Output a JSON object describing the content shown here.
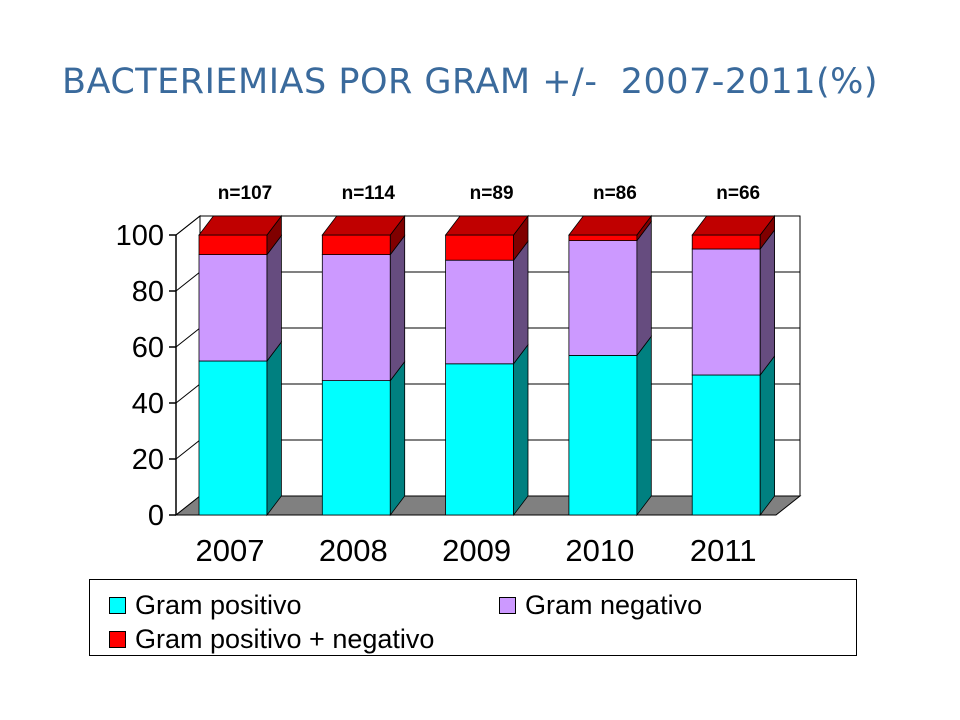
{
  "title_main": "BACTERIEMIAS POR GRAM +/-",
  "title_years": "2007-2011",
  "title_unit": "(%)",
  "colors": {
    "title": "#3a6a9c",
    "gram_pos_front": "#00ffff",
    "gram_pos_side": "#008080",
    "gram_neg_front": "#cc99ff",
    "gram_neg_side": "#664c7f",
    "mixed_front": "#ff0000",
    "mixed_side": "#800000",
    "top": "#c00000",
    "floor": "#808080"
  },
  "chart_data": {
    "type": "bar",
    "stacked": true,
    "three_d": true,
    "categories": [
      "2007",
      "2008",
      "2009",
      "2010",
      "2011"
    ],
    "annotations": [
      "n=107",
      "n=114",
      "n=89",
      "n=86",
      "n=66"
    ],
    "series": [
      {
        "name": "Gram positivo",
        "values": [
          55,
          48,
          54,
          57,
          50
        ]
      },
      {
        "name": "Gram negativo",
        "values": [
          38,
          45,
          37,
          41,
          45
        ]
      },
      {
        "name": "Gram positivo + negativo",
        "values": [
          7,
          7,
          9,
          2,
          5
        ]
      }
    ],
    "ylim": [
      0,
      100
    ],
    "yticks": [
      "0",
      "20",
      "40",
      "60",
      "80",
      "100"
    ],
    "grid": true,
    "legend_position": "bottom"
  }
}
